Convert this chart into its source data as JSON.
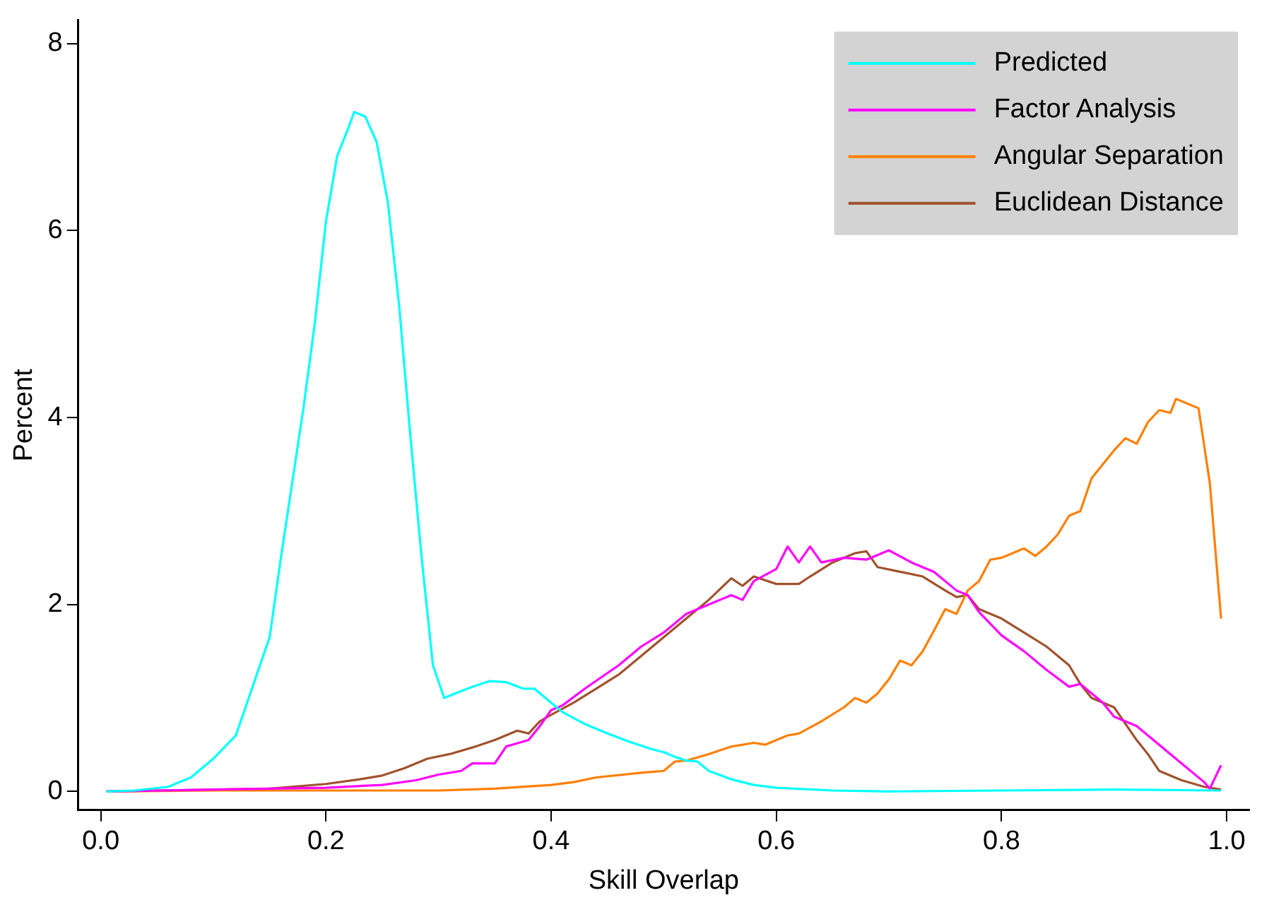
{
  "chart_data": {
    "type": "line",
    "xlabel": "Skill Overlap",
    "ylabel": "Percent",
    "xlim": [
      -0.02,
      1.02
    ],
    "ylim": [
      -0.2,
      8.25
    ],
    "xticks": [
      {
        "value": 0,
        "label": "0.0"
      },
      0.2,
      0.4,
      0.6,
      0.8,
      {
        "value": 1,
        "label": "1.0"
      }
    ],
    "yticks": [
      0,
      2,
      4,
      6,
      8
    ],
    "grid": false,
    "legend": "top right",
    "marker": "none",
    "line_style": "solid",
    "series": [
      {
        "name": "Predicted",
        "color": "#00ffff",
        "x": [
          0.005,
          0.03,
          0.06,
          0.08,
          0.1,
          0.12,
          0.13,
          0.14,
          0.15,
          0.16,
          0.17,
          0.18,
          0.19,
          0.2,
          0.21,
          0.22,
          0.225,
          0.235,
          0.245,
          0.255,
          0.265,
          0.275,
          0.285,
          0.295,
          0.305,
          0.315,
          0.33,
          0.345,
          0.36,
          0.375,
          0.385,
          0.4,
          0.41,
          0.43,
          0.45,
          0.47,
          0.49,
          0.5,
          0.51,
          0.52,
          0.53,
          0.54,
          0.56,
          0.58,
          0.6,
          0.65,
          0.7,
          0.8,
          0.9,
          0.995
        ],
        "values": [
          0,
          0.01,
          0.05,
          0.15,
          0.35,
          0.6,
          0.95,
          1.3,
          1.65,
          2.5,
          3.3,
          4.1,
          5.0,
          6.1,
          6.8,
          7.1,
          7.27,
          7.22,
          6.95,
          6.3,
          5.2,
          3.8,
          2.5,
          1.35,
          1.0,
          1.05,
          1.12,
          1.18,
          1.17,
          1.1,
          1.1,
          0.95,
          0.85,
          0.72,
          0.62,
          0.53,
          0.45,
          0.42,
          0.37,
          0.33,
          0.32,
          0.22,
          0.13,
          0.07,
          0.04,
          0.01,
          0,
          0.01,
          0.02,
          0.01
        ]
      },
      {
        "name": "Factor Analysis",
        "color": "#ff00ff",
        "x": [
          0.005,
          0.1,
          0.2,
          0.25,
          0.28,
          0.3,
          0.32,
          0.33,
          0.35,
          0.36,
          0.38,
          0.39,
          0.4,
          0.41,
          0.43,
          0.46,
          0.48,
          0.5,
          0.52,
          0.54,
          0.56,
          0.57,
          0.58,
          0.6,
          0.61,
          0.62,
          0.63,
          0.64,
          0.66,
          0.68,
          0.7,
          0.72,
          0.74,
          0.76,
          0.77,
          0.78,
          0.8,
          0.82,
          0.84,
          0.86,
          0.87,
          0.88,
          0.89,
          0.9,
          0.92,
          0.94,
          0.96,
          0.98,
          0.985,
          0.995
        ],
        "values": [
          0,
          0.02,
          0.04,
          0.07,
          0.12,
          0.18,
          0.22,
          0.3,
          0.3,
          0.48,
          0.55,
          0.7,
          0.87,
          0.92,
          1.1,
          1.35,
          1.55,
          1.7,
          1.9,
          2.0,
          2.1,
          2.05,
          2.25,
          2.38,
          2.62,
          2.45,
          2.62,
          2.45,
          2.5,
          2.48,
          2.58,
          2.45,
          2.35,
          2.15,
          2.1,
          1.92,
          1.67,
          1.5,
          1.3,
          1.12,
          1.15,
          1.05,
          0.95,
          0.8,
          0.7,
          0.5,
          0.3,
          0.1,
          0.03,
          0.28
        ]
      },
      {
        "name": "Angular Separation",
        "color": "#ff7f00",
        "x": [
          0.005,
          0.1,
          0.2,
          0.3,
          0.35,
          0.4,
          0.42,
          0.44,
          0.48,
          0.5,
          0.51,
          0.52,
          0.54,
          0.56,
          0.58,
          0.59,
          0.61,
          0.62,
          0.64,
          0.66,
          0.67,
          0.68,
          0.69,
          0.7,
          0.71,
          0.72,
          0.73,
          0.74,
          0.75,
          0.76,
          0.77,
          0.78,
          0.79,
          0.8,
          0.81,
          0.82,
          0.83,
          0.84,
          0.85,
          0.86,
          0.87,
          0.88,
          0.89,
          0.9,
          0.91,
          0.92,
          0.93,
          0.94,
          0.95,
          0.955,
          0.965,
          0.975,
          0.985,
          0.995
        ],
        "values": [
          0,
          0.01,
          0.01,
          0.01,
          0.03,
          0.07,
          0.1,
          0.15,
          0.2,
          0.22,
          0.32,
          0.33,
          0.4,
          0.48,
          0.52,
          0.5,
          0.6,
          0.62,
          0.75,
          0.9,
          1.0,
          0.95,
          1.05,
          1.2,
          1.4,
          1.35,
          1.5,
          1.72,
          1.95,
          1.9,
          2.15,
          2.25,
          2.48,
          2.5,
          2.55,
          2.6,
          2.52,
          2.62,
          2.75,
          2.95,
          3.0,
          3.35,
          3.5,
          3.65,
          3.78,
          3.72,
          3.95,
          4.08,
          4.05,
          4.2,
          4.15,
          4.1,
          3.3,
          1.85
        ]
      },
      {
        "name": "Euclidean Distance",
        "color": "#a0522d",
        "x": [
          0.005,
          0.15,
          0.2,
          0.23,
          0.25,
          0.27,
          0.29,
          0.31,
          0.33,
          0.35,
          0.37,
          0.38,
          0.39,
          0.4,
          0.42,
          0.44,
          0.46,
          0.48,
          0.5,
          0.52,
          0.54,
          0.56,
          0.57,
          0.58,
          0.6,
          0.62,
          0.63,
          0.65,
          0.67,
          0.68,
          0.69,
          0.71,
          0.73,
          0.75,
          0.76,
          0.77,
          0.78,
          0.8,
          0.82,
          0.84,
          0.86,
          0.87,
          0.88,
          0.9,
          0.92,
          0.93,
          0.94,
          0.96,
          0.98,
          0.995
        ],
        "values": [
          0,
          0.03,
          0.08,
          0.13,
          0.17,
          0.25,
          0.35,
          0.4,
          0.47,
          0.55,
          0.65,
          0.62,
          0.75,
          0.82,
          0.95,
          1.1,
          1.25,
          1.45,
          1.65,
          1.85,
          2.05,
          2.28,
          2.2,
          2.3,
          2.22,
          2.22,
          2.3,
          2.45,
          2.55,
          2.57,
          2.4,
          2.35,
          2.3,
          2.15,
          2.08,
          2.1,
          1.95,
          1.85,
          1.7,
          1.55,
          1.35,
          1.15,
          1.0,
          0.9,
          0.55,
          0.4,
          0.22,
          0.12,
          0.05,
          0.02
        ]
      }
    ]
  }
}
